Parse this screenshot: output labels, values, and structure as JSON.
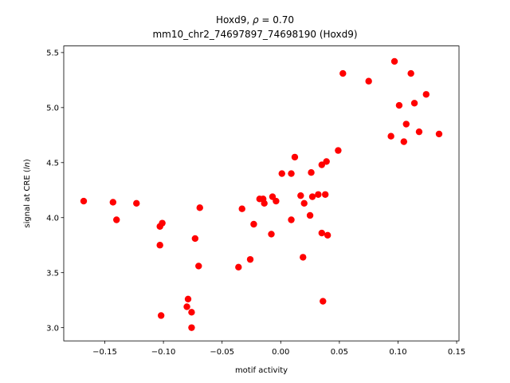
{
  "chart_data": {
    "type": "scatter",
    "title_line1_prefix": "Hoxd9, ",
    "title_rho_symbol": "ρ",
    "title_rho_value": " = 0.70",
    "title_line2": "mm10_chr2_74697897_74698190 (Hoxd9)",
    "xlabel": "motif activity",
    "ylabel_prefix": "signal at CRE (",
    "ylabel_italic": "ln",
    "ylabel_suffix": ")",
    "xlim": [
      -0.185,
      0.152
    ],
    "ylim": [
      2.88,
      5.56
    ],
    "xticks": [
      -0.15,
      -0.1,
      -0.05,
      0.0,
      0.05,
      0.1,
      0.15
    ],
    "xtick_labels": [
      "−0.15",
      "−0.10",
      "−0.05",
      "0.00",
      "0.05",
      "0.10",
      "0.15"
    ],
    "yticks": [
      3.0,
      3.5,
      4.0,
      4.5,
      5.0,
      5.5
    ],
    "ytick_labels": [
      "3.0",
      "3.5",
      "4.0",
      "4.5",
      "5.0",
      "5.5"
    ],
    "marker_color": "#ff0000",
    "grid": false,
    "points": [
      {
        "x": -0.168,
        "y": 4.15
      },
      {
        "x": -0.143,
        "y": 4.14
      },
      {
        "x": -0.14,
        "y": 3.98
      },
      {
        "x": -0.123,
        "y": 4.13
      },
      {
        "x": -0.103,
        "y": 3.92
      },
      {
        "x": -0.101,
        "y": 3.95
      },
      {
        "x": -0.103,
        "y": 3.75
      },
      {
        "x": -0.102,
        "y": 3.11
      },
      {
        "x": -0.08,
        "y": 3.19
      },
      {
        "x": -0.079,
        "y": 3.26
      },
      {
        "x": -0.076,
        "y": 3.14
      },
      {
        "x": -0.076,
        "y": 3.0
      },
      {
        "x": -0.073,
        "y": 3.81
      },
      {
        "x": -0.07,
        "y": 3.56
      },
      {
        "x": -0.069,
        "y": 4.09
      },
      {
        "x": -0.036,
        "y": 3.55
      },
      {
        "x": -0.033,
        "y": 4.08
      },
      {
        "x": -0.026,
        "y": 3.62
      },
      {
        "x": -0.023,
        "y": 3.94
      },
      {
        "x": -0.018,
        "y": 4.17
      },
      {
        "x": -0.015,
        "y": 4.17
      },
      {
        "x": -0.014,
        "y": 4.13
      },
      {
        "x": -0.008,
        "y": 3.85
      },
      {
        "x": -0.007,
        "y": 4.19
      },
      {
        "x": -0.004,
        "y": 4.15
      },
      {
        "x": 0.001,
        "y": 4.4
      },
      {
        "x": 0.009,
        "y": 4.4
      },
      {
        "x": 0.009,
        "y": 3.98
      },
      {
        "x": 0.012,
        "y": 4.55
      },
      {
        "x": 0.017,
        "y": 4.2
      },
      {
        "x": 0.019,
        "y": 3.64
      },
      {
        "x": 0.02,
        "y": 4.13
      },
      {
        "x": 0.025,
        "y": 4.02
      },
      {
        "x": 0.026,
        "y": 4.41
      },
      {
        "x": 0.027,
        "y": 4.19
      },
      {
        "x": 0.032,
        "y": 4.21
      },
      {
        "x": 0.035,
        "y": 4.48
      },
      {
        "x": 0.035,
        "y": 3.86
      },
      {
        "x": 0.036,
        "y": 3.24
      },
      {
        "x": 0.038,
        "y": 4.21
      },
      {
        "x": 0.039,
        "y": 4.51
      },
      {
        "x": 0.04,
        "y": 3.84
      },
      {
        "x": 0.049,
        "y": 4.61
      },
      {
        "x": 0.053,
        "y": 5.31
      },
      {
        "x": 0.075,
        "y": 5.24
      },
      {
        "x": 0.094,
        "y": 4.74
      },
      {
        "x": 0.097,
        "y": 5.42
      },
      {
        "x": 0.101,
        "y": 5.02
      },
      {
        "x": 0.105,
        "y": 4.69
      },
      {
        "x": 0.107,
        "y": 4.85
      },
      {
        "x": 0.111,
        "y": 5.31
      },
      {
        "x": 0.114,
        "y": 5.04
      },
      {
        "x": 0.118,
        "y": 4.78
      },
      {
        "x": 0.124,
        "y": 5.12
      },
      {
        "x": 0.135,
        "y": 4.76
      }
    ]
  }
}
